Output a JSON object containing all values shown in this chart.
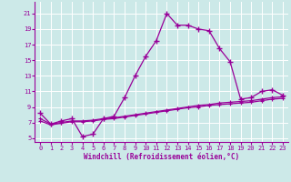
{
  "xlabel": "Windchill (Refroidissement éolien,°C)",
  "bg_color": "#cce9e8",
  "grid_color": "#ffffff",
  "line_color": "#990099",
  "hours": [
    0,
    1,
    2,
    3,
    4,
    5,
    6,
    7,
    8,
    9,
    10,
    11,
    12,
    13,
    14,
    15,
    16,
    17,
    18,
    19,
    20,
    21,
    22,
    23
  ],
  "temp_line": [
    8.2,
    6.8,
    7.2,
    7.5,
    5.2,
    5.5,
    7.5,
    7.8,
    10.2,
    13.0,
    15.5,
    17.5,
    21.0,
    19.5,
    19.5,
    19.0,
    18.8,
    16.5,
    14.8,
    10.0,
    10.2,
    11.0,
    11.2,
    10.5
  ],
  "windchill1": [
    7.5,
    6.8,
    7.0,
    7.2,
    7.2,
    7.3,
    7.5,
    7.6,
    7.8,
    8.0,
    8.2,
    8.4,
    8.6,
    8.8,
    9.0,
    9.2,
    9.3,
    9.5,
    9.6,
    9.7,
    9.8,
    10.0,
    10.2,
    10.3
  ],
  "windchill2": [
    7.2,
    6.7,
    6.9,
    7.1,
    7.1,
    7.2,
    7.4,
    7.5,
    7.7,
    7.9,
    8.1,
    8.3,
    8.5,
    8.7,
    8.9,
    9.0,
    9.2,
    9.3,
    9.4,
    9.5,
    9.6,
    9.8,
    10.0,
    10.1
  ],
  "ylim": [
    4.5,
    22.5
  ],
  "yticks": [
    5,
    7,
    9,
    11,
    13,
    15,
    17,
    19,
    21
  ],
  "xlim": [
    -0.5,
    23.5
  ],
  "xticks": [
    0,
    1,
    2,
    3,
    4,
    5,
    6,
    7,
    8,
    9,
    10,
    11,
    12,
    13,
    14,
    15,
    16,
    17,
    18,
    19,
    20,
    21,
    22,
    23
  ]
}
